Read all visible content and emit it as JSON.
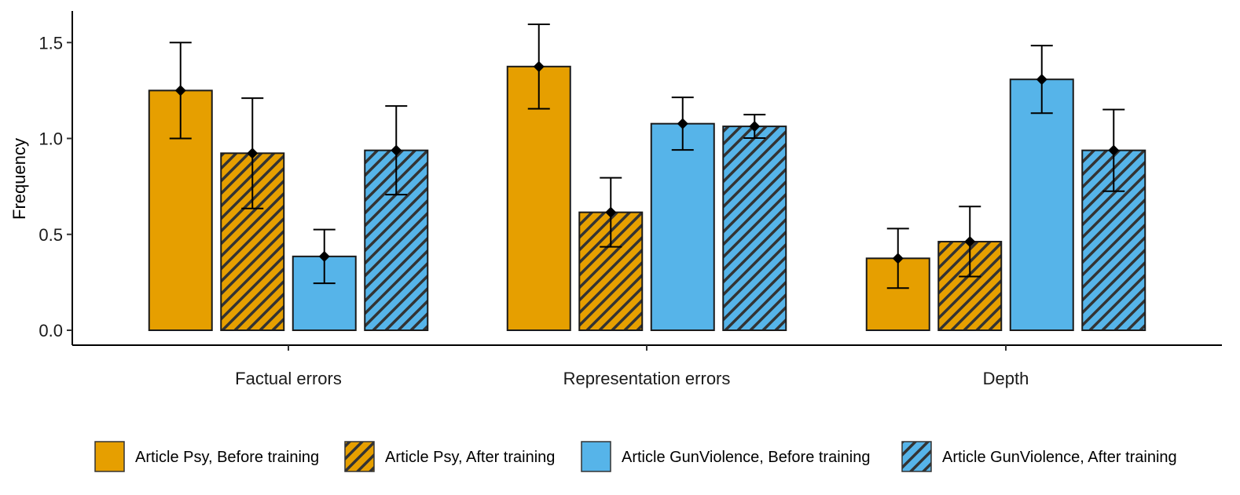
{
  "chart_data": {
    "type": "bar",
    "title": "",
    "xlabel": "",
    "ylabel": "Frequency",
    "ylim": [
      0,
      1.65
    ],
    "yticks": [
      0.0,
      0.5,
      1.0,
      1.5
    ],
    "ytick_labels": [
      "0.0",
      "0.5",
      "1.0",
      "1.5"
    ],
    "grid": false,
    "legend_position": "bottom",
    "categories": [
      "Factual errors",
      "Representation errors",
      "Depth"
    ],
    "series": [
      {
        "name": "Article Psy, Before training",
        "color": "#E69F00",
        "hatched": false,
        "values": [
          1.25,
          1.375,
          0.375
        ],
        "error_low": [
          1.0,
          1.155,
          0.22
        ],
        "error_high": [
          1.5,
          1.595,
          0.53
        ]
      },
      {
        "name": "Article Psy, After training",
        "color": "#E69F00",
        "hatched": true,
        "values": [
          0.923,
          0.615,
          0.462
        ],
        "error_low": [
          0.635,
          0.435,
          0.28
        ],
        "error_high": [
          1.21,
          0.795,
          0.645
        ]
      },
      {
        "name": "Article GunViolence, Before training",
        "color": "#56B4E9",
        "hatched": false,
        "values": [
          0.385,
          1.077,
          1.308
        ],
        "error_low": [
          0.245,
          0.94,
          1.132
        ],
        "error_high": [
          0.525,
          1.214,
          1.484
        ]
      },
      {
        "name": "Article GunViolence, After training",
        "color": "#56B4E9",
        "hatched": true,
        "values": [
          0.938,
          1.063,
          0.938
        ],
        "error_low": [
          0.707,
          1.002,
          0.725
        ],
        "error_high": [
          1.169,
          1.124,
          1.151
        ]
      }
    ]
  }
}
